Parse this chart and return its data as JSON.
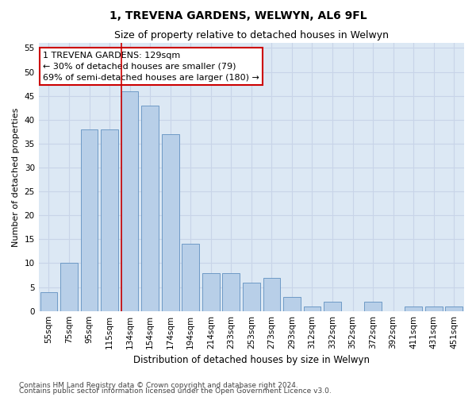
{
  "title": "1, TREVENA GARDENS, WELWYN, AL6 9FL",
  "subtitle": "Size of property relative to detached houses in Welwyn",
  "xlabel": "Distribution of detached houses by size in Welwyn",
  "ylabel": "Number of detached properties",
  "footnote1": "Contains HM Land Registry data © Crown copyright and database right 2024.",
  "footnote2": "Contains public sector information licensed under the Open Government Licence v3.0.",
  "bar_labels": [
    "55sqm",
    "75sqm",
    "95sqm",
    "115sqm",
    "134sqm",
    "154sqm",
    "174sqm",
    "194sqm",
    "214sqm",
    "233sqm",
    "253sqm",
    "273sqm",
    "293sqm",
    "312sqm",
    "332sqm",
    "352sqm",
    "372sqm",
    "392sqm",
    "411sqm",
    "431sqm",
    "451sqm"
  ],
  "bar_values": [
    4,
    10,
    38,
    38,
    46,
    43,
    37,
    14,
    8,
    8,
    6,
    7,
    3,
    1,
    2,
    0,
    2,
    0,
    1,
    1,
    1
  ],
  "bar_color": "#b8cfe8",
  "bar_edge_color": "#6090c0",
  "vline_x_index": 4,
  "vline_color": "#cc0000",
  "annotation_line1": "1 TREVENA GARDENS: 129sqm",
  "annotation_line2": "← 30% of detached houses are smaller (79)",
  "annotation_line3": "69% of semi-detached houses are larger (180) →",
  "annotation_box_color": "white",
  "annotation_box_edge": "#cc0000",
  "ylim": [
    0,
    56
  ],
  "yticks": [
    0,
    5,
    10,
    15,
    20,
    25,
    30,
    35,
    40,
    45,
    50,
    55
  ],
  "grid_color": "#c8d4e8",
  "bg_color": "#dce8f4",
  "fig_width": 6.0,
  "fig_height": 5.0,
  "title_fontsize": 10,
  "subtitle_fontsize": 9,
  "xlabel_fontsize": 8.5,
  "ylabel_fontsize": 8,
  "tick_fontsize": 7.5,
  "footnote_fontsize": 6.5
}
